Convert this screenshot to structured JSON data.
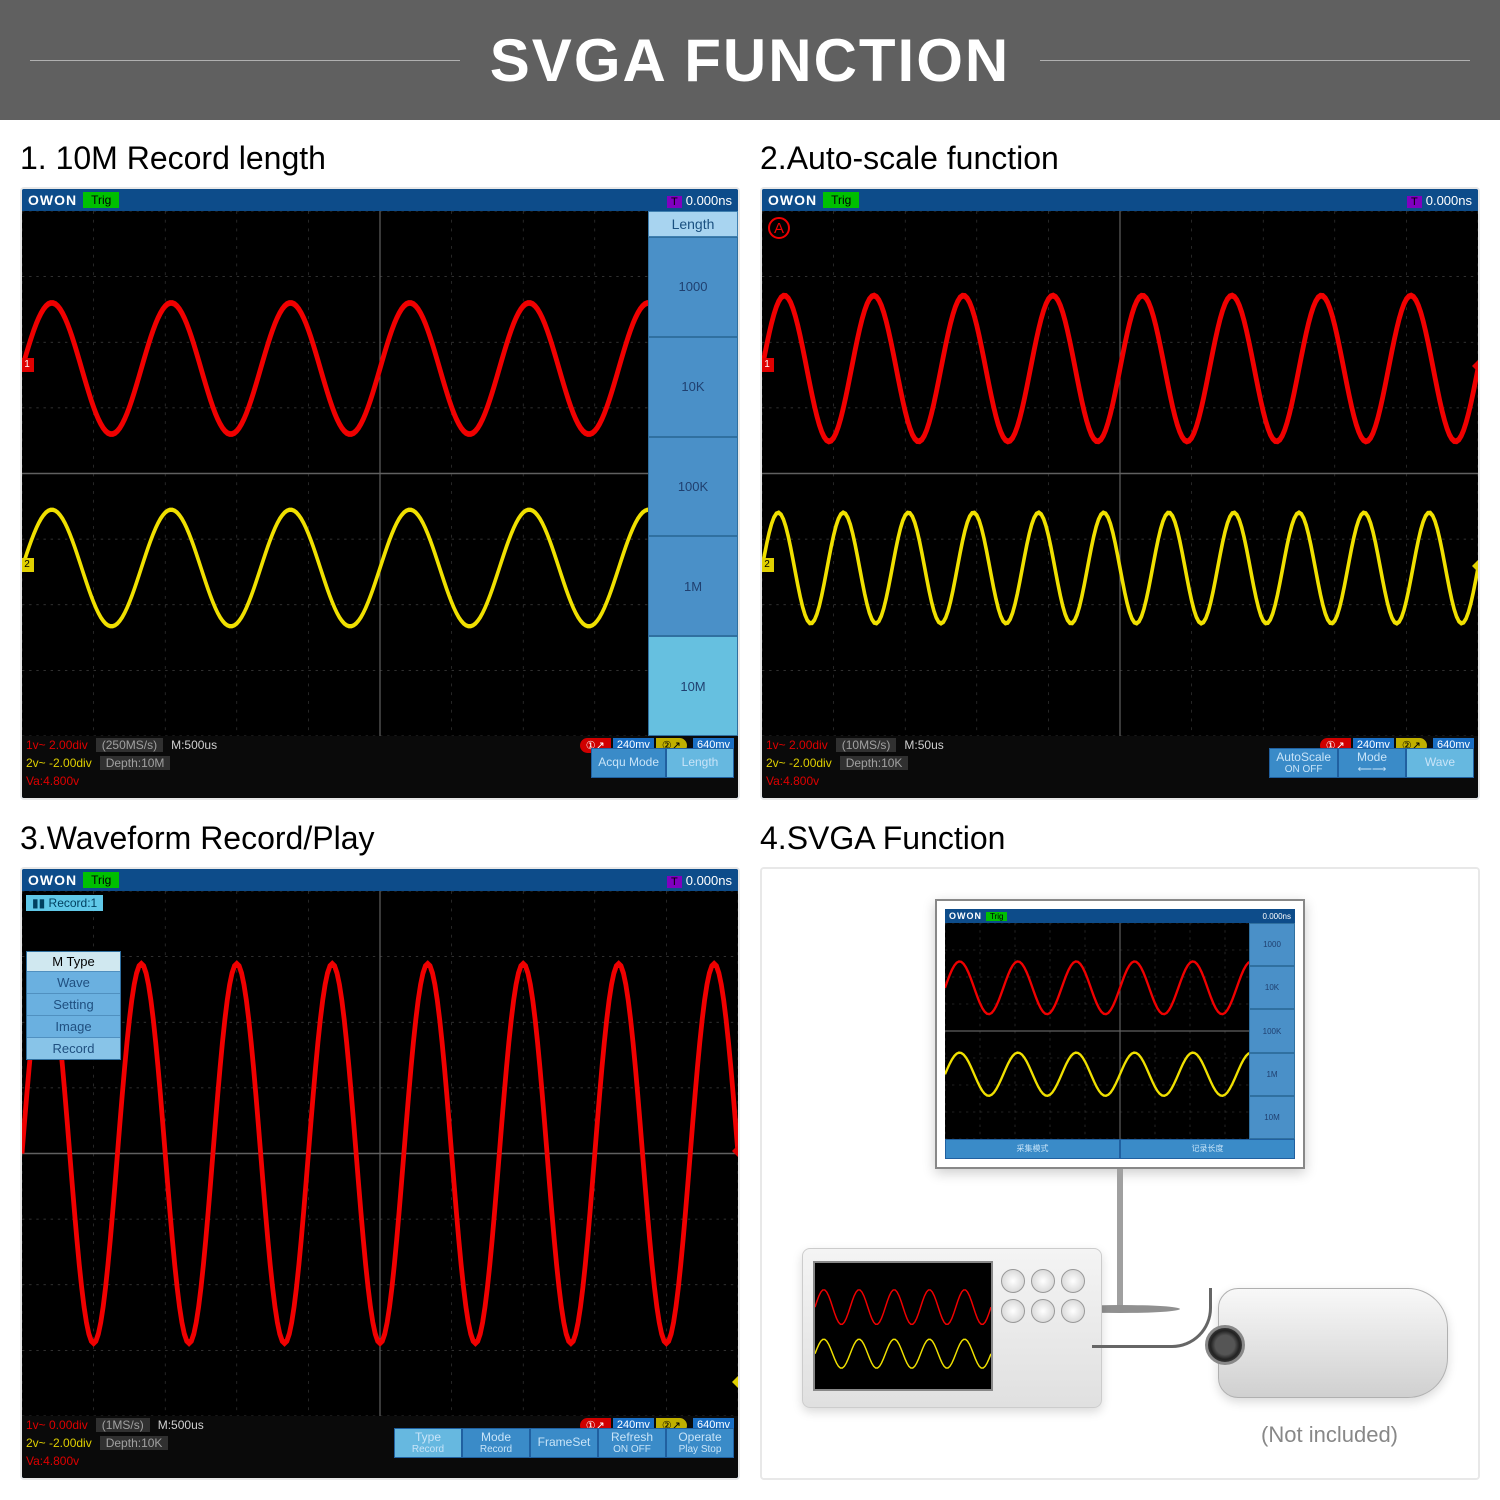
{
  "header": {
    "title": "SVGA FUNCTION"
  },
  "panels": [
    {
      "title": "1. 10M Record length"
    },
    {
      "title": "2.Auto-scale function"
    },
    {
      "title": "3.Waveform Record/Play"
    },
    {
      "title": "4.SVGA Function"
    }
  ],
  "scope_common": {
    "brand": "OWON",
    "trig_label": "Trig",
    "time_cursor": "0.000ns",
    "time_cursor_prefix": "T",
    "ch1_label": "1",
    "ch2_label": "2",
    "colors": {
      "plot_bg": "#000000",
      "frame_bg": "#1a6fc4",
      "grid": "#404040",
      "ch1": "#f00000",
      "ch2": "#f0e000",
      "button": "#3a8bc8",
      "button_sel": "#66b8e0"
    }
  },
  "panel1": {
    "side_panel": {
      "title": "Length",
      "items": [
        "1000",
        "10K",
        "100K",
        "1M",
        "10M"
      ],
      "selected": "10M"
    },
    "readouts": {
      "ch1": "1v~    2.00div",
      "ch2": "2v~   -2.00div",
      "va": "Va:4.800v",
      "rate": "(250MS/s)",
      "depth": "Depth:10M",
      "timebase": "M:500us",
      "trig1_val": "240mv",
      "trig2_val": "640mv"
    },
    "bottom_buttons": [
      {
        "label": "Acqu Mode",
        "sel": false
      },
      {
        "label": "Length",
        "sel": true
      }
    ],
    "wave": {
      "ch1_cycles": 6,
      "ch2_cycles": 6,
      "ch1_amp": 45,
      "ch2_amp": 40,
      "ch1_y": 0.3,
      "ch2_y": 0.68
    }
  },
  "panel2": {
    "autoset_marker": "A",
    "readouts": {
      "ch1": "1v~    2.00div",
      "ch2": "2v~   -2.00div",
      "va": "Va:4.800v",
      "rate": "(10MS/s)",
      "depth": "Depth:10K",
      "timebase": "M:50us",
      "trig1_val": "240mv",
      "trig2_val": "640mv"
    },
    "bottom_buttons": [
      {
        "label": "AutoScale",
        "sub": "ON  OFF",
        "sel": false
      },
      {
        "label": "Mode",
        "sub": "⟵⟶",
        "sel": false
      },
      {
        "label": "Wave",
        "sub": "",
        "sel": true
      }
    ],
    "wave": {
      "ch1_cycles": 8,
      "ch2_cycles": 11,
      "ch1_amp": 50,
      "ch2_amp": 38,
      "ch1_y": 0.3,
      "ch2_y": 0.68
    }
  },
  "panel3": {
    "record_badge": "▮▮ Record:1",
    "left_menu": {
      "title": "M Type",
      "items": [
        "Wave",
        "Setting",
        "Image",
        "Record"
      ],
      "selected": "Record"
    },
    "readouts": {
      "ch1": "1v~    0.00div",
      "ch2": "2v~   -2.00div",
      "va": "Va:4.800v",
      "rate": "(1MS/s)",
      "depth": "Depth:10K",
      "timebase": "M:500us",
      "trig1_val": "240mv",
      "trig2_val": "640mv"
    },
    "bottom_buttons": [
      {
        "label": "Type",
        "sub": "Record",
        "sel": true
      },
      {
        "label": "Mode",
        "sub": "Record",
        "sel": false
      },
      {
        "label": "FrameSet",
        "sub": "",
        "sel": false
      },
      {
        "label": "Refresh",
        "sub": "ON  OFF",
        "sel": false
      },
      {
        "label": "Operate",
        "sub": "Play Stop",
        "sel": false
      }
    ],
    "wave": {
      "ch1_cycles": 7.5,
      "ch1_amp": 130,
      "ch1_y": 0.5
    }
  },
  "panel4": {
    "note": "(Not included)",
    "mini_side": [
      "1000",
      "10K",
      "100K",
      "1M",
      "10M"
    ],
    "mini_bottom": [
      "采集模式",
      "记录长度"
    ],
    "mini_topright": "0.000ns"
  }
}
